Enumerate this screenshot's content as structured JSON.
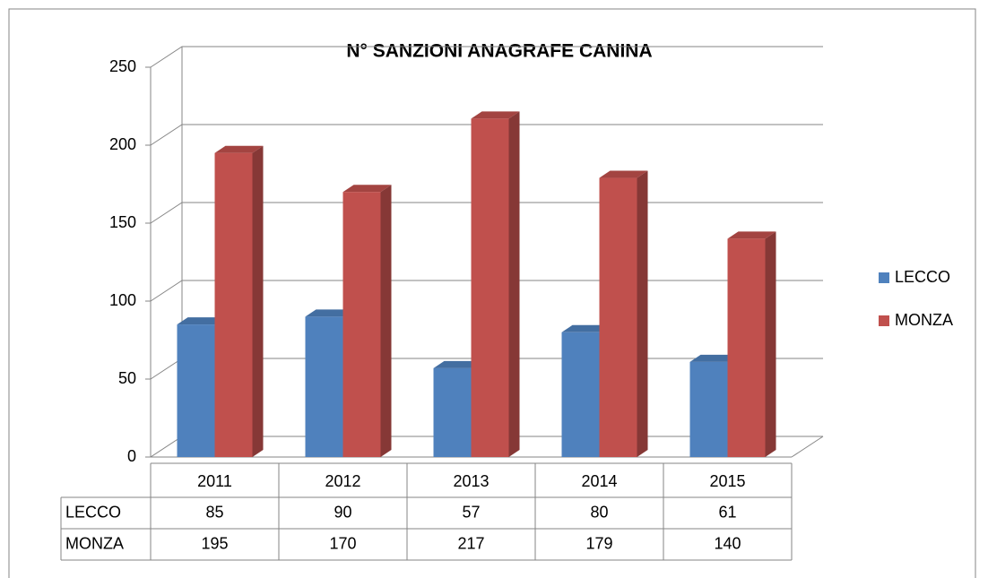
{
  "chart_data": {
    "type": "bar",
    "title": "N° SANZIONI ANAGRAFE CANINA",
    "categories": [
      "2011",
      "2012",
      "2013",
      "2014",
      "2015"
    ],
    "series": [
      {
        "name": "LECCO",
        "color": "#4f81bd",
        "values": [
          85,
          90,
          57,
          80,
          61
        ]
      },
      {
        "name": "MONZA",
        "color": "#c0504d",
        "values": [
          195,
          170,
          217,
          179,
          140
        ]
      }
    ],
    "ylim": [
      0,
      250
    ],
    "yticks": [
      0,
      50,
      100,
      150,
      200,
      250
    ],
    "grid": true,
    "legend": "right",
    "data_table": true
  }
}
